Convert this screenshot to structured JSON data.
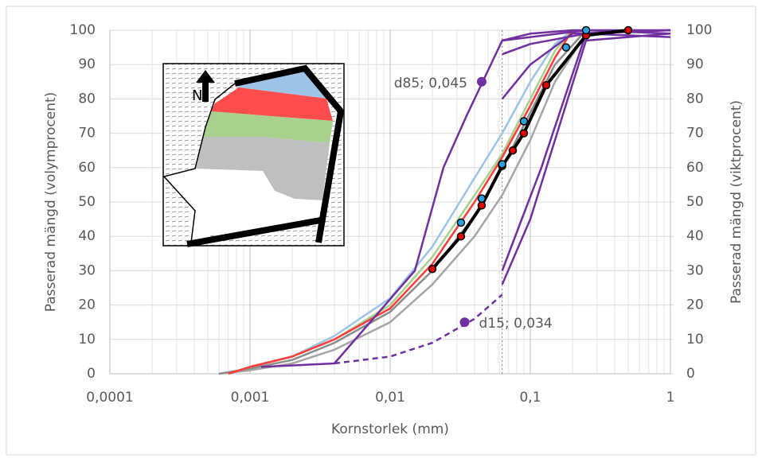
{
  "chart_data": {
    "type": "line",
    "x_log_scale": true,
    "xlim": [
      0.0001,
      1
    ],
    "xticks": [
      {
        "value": 0.0001,
        "label": "0,0001"
      },
      {
        "value": 0.001,
        "label": "0,001"
      },
      {
        "value": 0.01,
        "label": "0,01"
      },
      {
        "value": 0.1,
        "label": "0,1"
      },
      1
    ],
    "ylim": [
      0,
      100
    ],
    "yticks": [
      0,
      10,
      20,
      30,
      40,
      50,
      60,
      70,
      80,
      90,
      100
    ],
    "y2lim": [
      0,
      100
    ],
    "y2ticks": [
      0,
      10,
      20,
      30,
      40,
      50,
      60,
      70,
      80,
      90,
      100
    ],
    "grid": true,
    "x_label": "Kornstorlek (mm)",
    "y_label": "Passerad mängd (volymprocent)",
    "y2_label": "Passerad mängd (viktprocent)",
    "reference_x": 0.063,
    "inset_label": "N",
    "series": [
      {
        "color": "#a6a6a6",
        "x": [
          0.0006,
          0.001,
          0.002,
          0.004,
          0.01,
          0.02,
          0.04,
          0.063,
          0.1,
          0.15,
          0.25
        ],
        "values": [
          0,
          1,
          3,
          7,
          15,
          26,
          40,
          52,
          68,
          85,
          99
        ]
      },
      {
        "color": "#8c8c8c",
        "x": [
          0.0006,
          0.001,
          0.002,
          0.004,
          0.01,
          0.02,
          0.04,
          0.063,
          0.1,
          0.15,
          0.25
        ],
        "values": [
          0,
          1.5,
          4,
          9,
          18,
          30,
          46,
          60,
          76,
          90,
          100
        ]
      },
      {
        "color": "#9dc3e6",
        "x": [
          0.0007,
          0.001,
          0.002,
          0.004,
          0.01,
          0.02,
          0.04,
          0.063,
          0.1,
          0.15,
          0.2
        ],
        "values": [
          0,
          2,
          5,
          11,
          22,
          37,
          57,
          70,
          85,
          96,
          100
        ]
      },
      {
        "color": "#a9d18e",
        "x": [
          0.0007,
          0.001,
          0.002,
          0.004,
          0.01,
          0.02,
          0.04,
          0.063,
          0.1,
          0.15,
          0.2
        ],
        "values": [
          0,
          2,
          5,
          10,
          20,
          34,
          52,
          64,
          80,
          94,
          100
        ]
      },
      {
        "color": "#ff3b3b",
        "x": [
          0.0007,
          0.001,
          0.002,
          0.004,
          0.01,
          0.02,
          0.04,
          0.063,
          0.1,
          0.15,
          0.2
        ],
        "values": [
          0,
          2,
          5,
          10,
          19,
          32,
          50,
          63,
          78,
          92,
          100
        ]
      },
      {
        "color": "#7030a0",
        "x": [
          0.0012,
          0.004,
          0.015,
          0.024,
          0.035,
          0.063,
          0.25,
          1
        ],
        "values": [
          2,
          3,
          30,
          60,
          75,
          97,
          100,
          99
        ]
      },
      {
        "color": "#7030a0",
        "dashed": true,
        "x": [
          0.004,
          0.01,
          0.02,
          0.04,
          0.063
        ],
        "values": [
          3,
          5,
          9,
          16,
          23
        ]
      },
      {
        "color": "#7030a0",
        "x": [
          0.063,
          0.1,
          0.25,
          1
        ],
        "values": [
          26,
          45,
          97,
          99
        ]
      },
      {
        "color": "#7030a0",
        "x": [
          0.063,
          0.12,
          0.25,
          1
        ],
        "values": [
          30,
          60,
          99,
          100
        ]
      },
      {
        "color": "#7030a0",
        "x": [
          0.063,
          0.1,
          0.2,
          1
        ],
        "values": [
          80,
          90,
          99,
          100
        ]
      },
      {
        "color": "#7030a0",
        "x": [
          0.063,
          0.1,
          0.25,
          1
        ],
        "values": [
          93,
          96,
          99,
          98
        ]
      },
      {
        "color": "#7030a0",
        "x": [
          0.063,
          0.1,
          0.2,
          1
        ],
        "values": [
          97,
          99,
          100,
          100
        ]
      },
      {
        "color": "#000000",
        "width": 4,
        "marker_color": "#e00000",
        "x": [
          0.02,
          0.032,
          0.045,
          0.063,
          0.075,
          0.09,
          0.13,
          0.25,
          0.5
        ],
        "values": [
          30.5,
          40,
          49,
          60.5,
          65,
          70,
          84,
          98.5,
          100
        ]
      },
      {
        "color": "#000000",
        "line": false,
        "marker_color": "#29a3e0",
        "x": [
          0.032,
          0.045,
          0.063,
          0.09,
          0.18,
          0.25
        ],
        "values": [
          44,
          51,
          61,
          73.5,
          95,
          100
        ]
      }
    ],
    "annotations": [
      {
        "text": "d85; 0,045",
        "x": 0.045,
        "y": 85,
        "color": "#7030a0"
      },
      {
        "text": "d15; 0,034",
        "x": 0.034,
        "y": 15,
        "color": "#7030a0"
      }
    ]
  }
}
